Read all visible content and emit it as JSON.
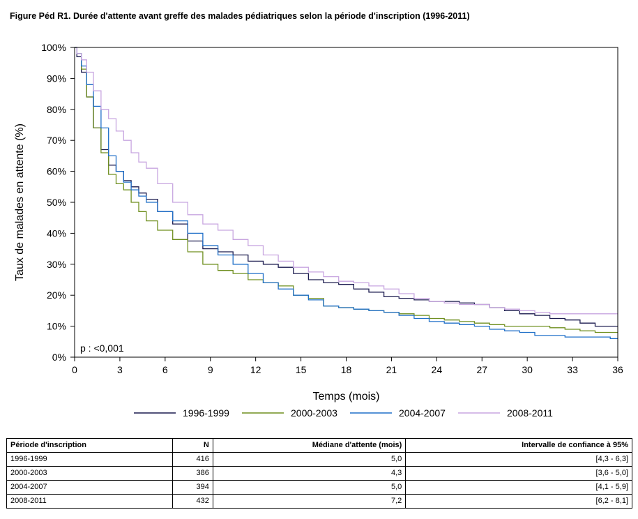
{
  "title": "Figure Péd R1. Durée d'attente avant greffe des malades pédiatriques selon la période d'inscription (1996-2011)",
  "chart_data": {
    "type": "line",
    "xlabel": "Temps (mois)",
    "ylabel": "Taux de malades en attente (%)",
    "xlim": [
      0,
      36
    ],
    "ylim": [
      0,
      100
    ],
    "xticks": [
      "0",
      "3",
      "6",
      "9",
      "12",
      "15",
      "18",
      "21",
      "24",
      "27",
      "30",
      "33",
      "36"
    ],
    "yticks": [
      "0%",
      "10%",
      "20%",
      "30%",
      "40%",
      "50%",
      "60%",
      "70%",
      "80%",
      "90%",
      "100%"
    ],
    "annotation": "p : <0,001",
    "legend_position": "bottom",
    "x": [
      0,
      0.3,
      0.6,
      1,
      1.5,
      2,
      2.5,
      3,
      3.5,
      4,
      4.5,
      5,
      6,
      7,
      8,
      9,
      10,
      11,
      12,
      13,
      14,
      15,
      16,
      17,
      18,
      19,
      20,
      21,
      22,
      23,
      24,
      25,
      26,
      27,
      28,
      29,
      30,
      31,
      32,
      33,
      34,
      35,
      36
    ],
    "series": [
      {
        "name": "1996-1999",
        "color": "#1a1a4e",
        "values": [
          100,
          97,
          92,
          84,
          74,
          67,
          62,
          60,
          57,
          55,
          53,
          51,
          47,
          43,
          37.5,
          35,
          34,
          33,
          31,
          30,
          29,
          27,
          25,
          24,
          23.5,
          22,
          21,
          19.5,
          19,
          18.5,
          18,
          18,
          17.5,
          17,
          16,
          15,
          14,
          13.5,
          12.5,
          12,
          11,
          10,
          10
        ]
      },
      {
        "name": "2000-2003",
        "color": "#6f8f1f",
        "values": [
          100,
          98,
          93,
          84,
          74,
          66,
          59,
          56,
          54,
          50,
          47,
          44,
          41,
          38,
          34,
          30,
          28,
          27,
          25,
          24,
          23,
          20,
          19,
          16.5,
          16,
          15.5,
          15,
          14.5,
          14,
          13.5,
          12.5,
          12,
          11.5,
          11,
          10.5,
          10,
          10,
          10,
          9.5,
          9,
          8.5,
          8,
          8
        ]
      },
      {
        "name": "2004-2007",
        "color": "#1f6fc8",
        "values": [
          100,
          98,
          94,
          88,
          81,
          74,
          65,
          60,
          56.5,
          54,
          52,
          50,
          47,
          44,
          40,
          36,
          33,
          30,
          27,
          24,
          22,
          20,
          18.5,
          16.5,
          16,
          15.5,
          15,
          14.5,
          13.5,
          12.5,
          11.5,
          11,
          10.5,
          10,
          9,
          8.5,
          8,
          7,
          7,
          6.5,
          6.5,
          6.5,
          6
        ]
      },
      {
        "name": "2008-2011",
        "color": "#c8a6e0",
        "values": [
          100,
          98,
          96,
          92,
          86,
          80,
          77,
          73,
          70,
          66,
          63,
          61,
          56,
          50,
          46,
          43,
          41,
          38,
          36,
          33,
          31,
          29,
          27.5,
          26,
          24.5,
          24,
          23,
          22,
          20.5,
          19,
          18,
          17.5,
          17,
          17,
          16,
          15.5,
          15,
          14.5,
          14,
          14,
          14,
          14,
          14
        ]
      }
    ]
  },
  "table": {
    "headers": [
      "Période d'inscription",
      "N",
      "Médiane d'attente (mois)",
      "Intervalle de confiance à 95%"
    ],
    "rows": [
      [
        "1996-1999",
        "416",
        "5,0",
        "[4,3 - 6,3]"
      ],
      [
        "2000-2003",
        "386",
        "4,3",
        "[3,6 - 5,0]"
      ],
      [
        "2004-2007",
        "394",
        "5,0",
        "[4,1 - 5,9]"
      ],
      [
        "2008-2011",
        "432",
        "7,2",
        "[6,2 - 8,1]"
      ]
    ]
  }
}
